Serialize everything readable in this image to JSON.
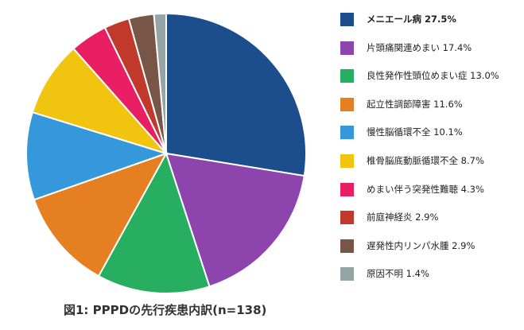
{
  "chart_data": {
    "type": "pie",
    "title": "図1: PPPDの先行疾患内訳(n=138)",
    "slices": [
      {
        "label": "メニエール病 27.5%",
        "value": 27.5,
        "color": "#1c4d8c"
      },
      {
        "label": "片頭痛関連めまい 17.4%",
        "value": 17.4,
        "color": "#8e44ad"
      },
      {
        "label": "良性発作性頭位めまい症 13.0%",
        "value": 13.0,
        "color": "#27ae60"
      },
      {
        "label": "起立性調節障害 11.6%",
        "value": 11.6,
        "color": "#e67e22"
      },
      {
        "label": "慢性脳循環不全 10.1%",
        "value": 10.1,
        "color": "#3498db"
      },
      {
        "label": "椎骨脳底動脈循環不全 8.7%",
        "value": 8.7,
        "color": "#f1c40f"
      },
      {
        "label": "めまい伴う突発性難聴 4.3%",
        "value": 4.3,
        "color": "#e91e63"
      },
      {
        "label": "前庭神経炎 2.9%",
        "value": 2.9,
        "color": "#c0392b"
      },
      {
        "label": "遅発性内リンパ水腫 2.9%",
        "value": 2.9,
        "color": "#795548"
      },
      {
        "label": "原因不明 1.4%",
        "value": 1.4,
        "color": "#95a5a6"
      }
    ],
    "legend": "right"
  }
}
